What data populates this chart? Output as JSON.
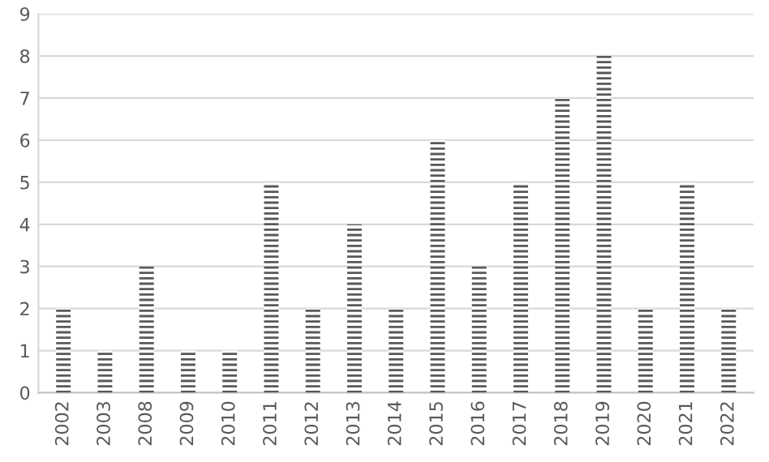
{
  "chart_data": {
    "type": "bar",
    "categories": [
      "2002",
      "2003",
      "2008",
      "2009",
      "2010",
      "2011",
      "2012",
      "2013",
      "2014",
      "2015",
      "2016",
      "2017",
      "2018",
      "2019",
      "2020",
      "2021",
      "2022"
    ],
    "values": [
      2,
      1,
      3,
      1,
      1,
      5,
      2,
      4,
      2,
      6,
      3,
      5,
      7,
      8,
      2,
      5,
      2
    ],
    "color": "#595959",
    "ylim": [
      0,
      9
    ],
    "yticks": [
      0,
      1,
      2,
      3,
      4,
      5,
      6,
      7,
      8,
      9
    ],
    "grid": "y",
    "legend": false
  }
}
